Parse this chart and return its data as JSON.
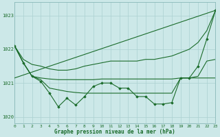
{
  "bg_color": "#cce8e8",
  "grid_color": "#aad0d0",
  "line_color": "#1a6b2a",
  "title": "Graphe pression niveau de la mer (hPa)",
  "ylim": [
    1019.8,
    1023.4
  ],
  "xlim": [
    0,
    23
  ],
  "yticks": [
    1020,
    1021,
    1022,
    1023
  ],
  "xticks": [
    0,
    1,
    2,
    3,
    4,
    5,
    6,
    7,
    8,
    9,
    10,
    11,
    12,
    13,
    14,
    15,
    16,
    17,
    18,
    19,
    20,
    21,
    22,
    23
  ],
  "line_diagonal": {
    "x": [
      0,
      23
    ],
    "y": [
      1021.15,
      1023.15
    ]
  },
  "line_flat": {
    "x": [
      0,
      1,
      2,
      3,
      4,
      5,
      6,
      7,
      8,
      9,
      10,
      11,
      12,
      13,
      14,
      15,
      16,
      17,
      18,
      19,
      20,
      21,
      22,
      23
    ],
    "y": [
      1022.1,
      1021.6,
      1021.2,
      1021.15,
      1021.12,
      1021.1,
      1021.1,
      1021.1,
      1021.1,
      1021.1,
      1021.12,
      1021.12,
      1021.12,
      1021.12,
      1021.12,
      1021.12,
      1021.12,
      1021.12,
      1021.12,
      1021.15,
      1021.15,
      1021.15,
      1021.15,
      1021.15
    ]
  },
  "line_drop": {
    "x": [
      0,
      1,
      2,
      3,
      4,
      5,
      6,
      7,
      8,
      9,
      10,
      11,
      12,
      13,
      14,
      15,
      16,
      17,
      18,
      19,
      20,
      21,
      22,
      23
    ],
    "y": [
      1022.1,
      1021.6,
      1021.2,
      1021.1,
      1020.85,
      1020.8,
      1020.75,
      1020.72,
      1020.7,
      1020.7,
      1020.7,
      1020.7,
      1020.7,
      1020.7,
      1020.7,
      1020.7,
      1020.7,
      1020.7,
      1020.7,
      1021.15,
      1021.15,
      1021.2,
      1021.65,
      1021.7
    ]
  },
  "line_zigzag": {
    "x": [
      0,
      1,
      2,
      3,
      4,
      5,
      6,
      7,
      8,
      9,
      10,
      11,
      12,
      13,
      14,
      15,
      16,
      17,
      18,
      19,
      20,
      21,
      22,
      23
    ],
    "y": [
      1022.1,
      1021.6,
      1021.2,
      1021.05,
      1020.7,
      1020.3,
      1020.55,
      1020.35,
      1020.6,
      1020.9,
      1021.0,
      1021.0,
      1020.85,
      1020.85,
      1020.6,
      1020.6,
      1020.38,
      1020.38,
      1020.42,
      1021.15,
      1021.15,
      1021.5,
      1022.3,
      1023.15
    ]
  },
  "line_rising": {
    "x": [
      0,
      1,
      2,
      3,
      4,
      5,
      6,
      7,
      8,
      9,
      10,
      11,
      12,
      13,
      14,
      15,
      16,
      17,
      18,
      19,
      20,
      21,
      22,
      23
    ],
    "y": [
      1022.1,
      1021.7,
      1021.55,
      1021.5,
      1021.42,
      1021.38,
      1021.38,
      1021.42,
      1021.5,
      1021.55,
      1021.6,
      1021.65,
      1021.65,
      1021.65,
      1021.65,
      1021.7,
      1021.7,
      1021.75,
      1021.8,
      1021.9,
      1022.0,
      1022.2,
      1022.55,
      1023.15
    ]
  }
}
